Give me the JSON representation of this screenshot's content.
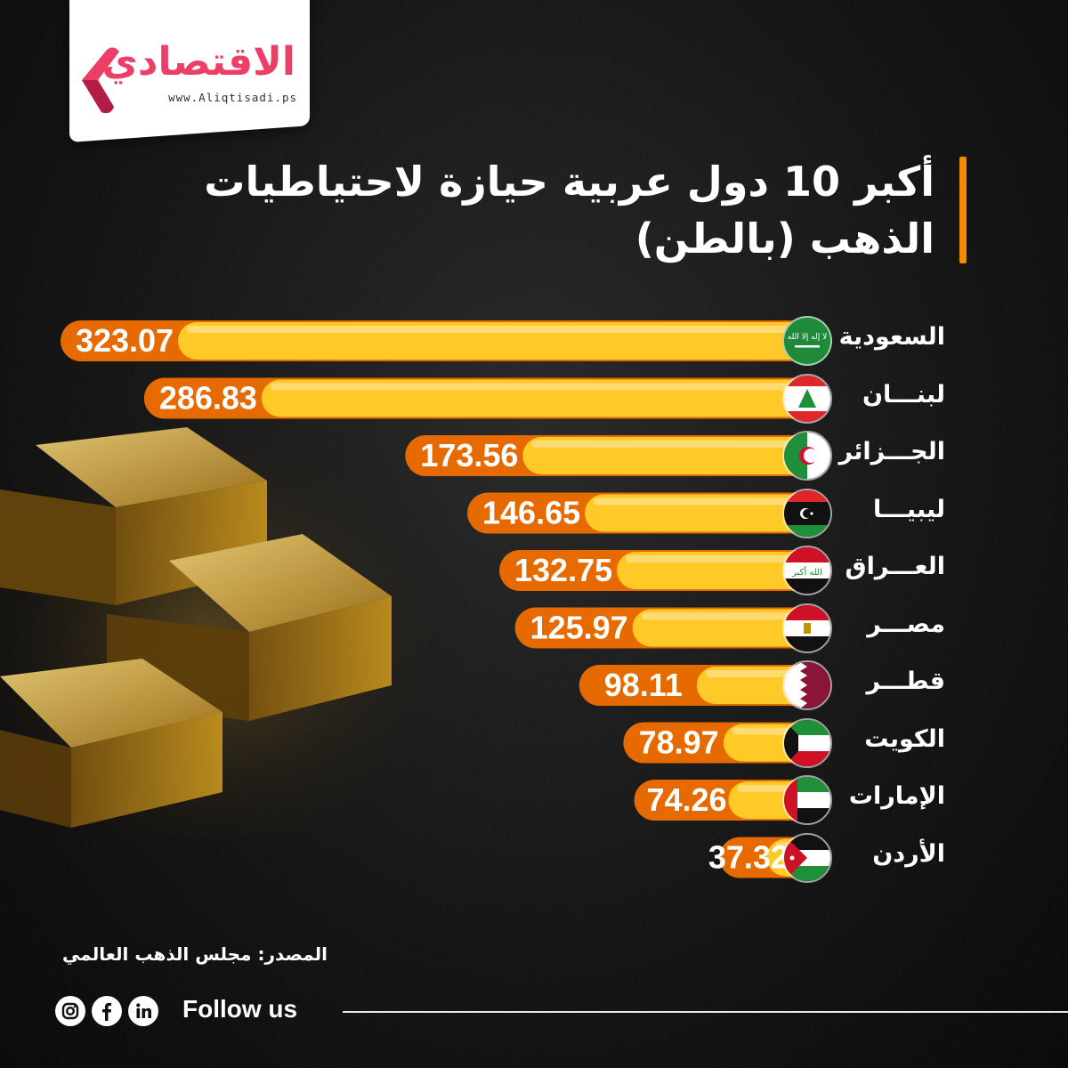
{
  "brand": {
    "name": "الاقتصادي",
    "url": "www.Aliqtisadi.ps",
    "accent": "#ec3e66"
  },
  "title": {
    "line1": "أكبر 10 دول عربية حيازة لاحتياطيات",
    "line2": "الذهب (بالطن)",
    "accent": "#f28a00"
  },
  "chart_data": {
    "type": "bar",
    "orientation": "horizontal",
    "categories": [
      "السعودية",
      "لبنـــان",
      "الجـــزائر",
      "ليبيـــا",
      "العـــراق",
      "مصـــر",
      "قطـــر",
      "الكويت",
      "الإمارات",
      "الأردن"
    ],
    "values": [
      323.07,
      286.83,
      173.56,
      146.65,
      132.75,
      125.97,
      98.11,
      78.97,
      74.26,
      37.32
    ],
    "value_labels": [
      "323.07",
      "286.83",
      "173.56",
      "146.65",
      "132.75",
      "125.97",
      "98.11",
      "78.97",
      "74.26",
      "37.32"
    ],
    "flags": [
      "saudi-arabia",
      "lebanon",
      "algeria",
      "libya",
      "iraq",
      "egypt",
      "qatar",
      "kuwait",
      "uae",
      "jordan"
    ],
    "colors": {
      "bar_fill": "#ffc928",
      "label_pill": "#e66a00",
      "label_text": "#ffffff"
    }
  },
  "source": "المصدر: مجلس الذهب العالمي",
  "footer": {
    "follow_label": "Follow us",
    "socials": [
      "linkedin-icon",
      "facebook-icon",
      "instagram-icon"
    ]
  }
}
